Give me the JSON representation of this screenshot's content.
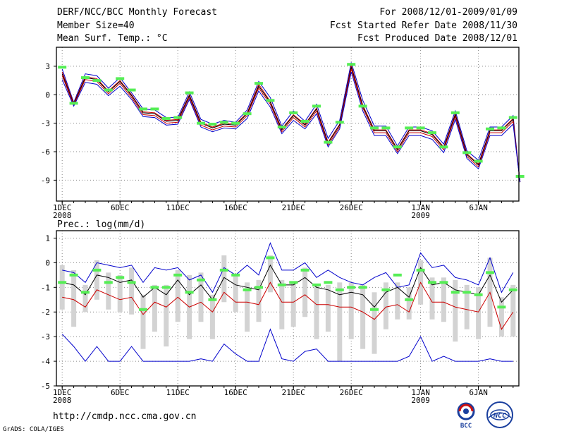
{
  "header": {
    "title": "DERF/NCC/BCC Monthly Forecast",
    "member": "Member Size=40",
    "variable": "Mean Surf. Temp.: °C",
    "period": "For 2008/12/01-2009/01/09",
    "started": "Fcst Started Refer Date 2008/11/30",
    "produced": "Fcst Produced Date 2008/12/01"
  },
  "footer": {
    "url": "http://cmdp.ncc.cma.gov.cn",
    "credit": "GrADS: COLA/IGES",
    "logo_bcc": "BCC",
    "logo_ncc": "NCC"
  },
  "colors": {
    "max": "#0000cc",
    "min": "#0000cc",
    "mean": "#000000",
    "upper": "#cc0000",
    "lower": "#cc0000",
    "bar": "#d3d3d3",
    "marker": "#55ee55",
    "grid": "#888888"
  },
  "chart_data": [
    {
      "type": "line",
      "title": "Mean Surf. Temp.: °C",
      "x": [
        1,
        2,
        3,
        4,
        5,
        6,
        7,
        8,
        9,
        10,
        11,
        12,
        13,
        14,
        15,
        16,
        17,
        18,
        19,
        20,
        21,
        22,
        23,
        24,
        25,
        26,
        27,
        28,
        29,
        30,
        31,
        32,
        33,
        34,
        35,
        36,
        37,
        38,
        39,
        40
      ],
      "xtick_positions": [
        1,
        6,
        11,
        16,
        21,
        26,
        32,
        37
      ],
      "xtick_labels": [
        "1DEC",
        "6DEC",
        "11DEC",
        "16DEC",
        "21DEC",
        "26DEC",
        "1JAN",
        "6JAN"
      ],
      "xtick_sublabels": {
        "1": "2008",
        "32": "2009"
      },
      "xlim": [
        0.5,
        40.5
      ],
      "ylim": [
        -11.2,
        5.0
      ],
      "yticks": [
        3,
        0,
        -3,
        -6,
        -9
      ],
      "ytick_labels": [
        "3",
        "0",
        "-3",
        "-6",
        "-9"
      ],
      "grid": true,
      "series": [
        {
          "name": "max",
          "values": [
            2.7,
            -0.8,
            2.2,
            2.0,
            0.7,
            1.8,
            0.2,
            -1.5,
            -1.6,
            -2.4,
            -2.4,
            0.3,
            -2.6,
            -3.1,
            -2.7,
            -2.9,
            -1.6,
            1.4,
            -0.3,
            -3.3,
            -1.7,
            -2.8,
            -1.0,
            -4.6,
            -2.7,
            3.4,
            -0.6,
            -3.3,
            -3.3,
            -5.4,
            -3.4,
            -3.4,
            -3.8,
            -5.2,
            -1.7,
            -5.9,
            -6.9,
            -3.4,
            -3.4,
            -2.2
          ]
        },
        {
          "name": "upper",
          "values": [
            2.4,
            -0.9,
            1.9,
            1.7,
            0.4,
            1.5,
            0.0,
            -1.8,
            -1.9,
            -2.7,
            -2.6,
            0.0,
            -2.9,
            -3.4,
            -3.0,
            -3.1,
            -1.9,
            1.1,
            -0.7,
            -3.6,
            -2.1,
            -3.1,
            -1.4,
            -5.0,
            -3.1,
            3.1,
            -1.1,
            -3.7,
            -3.7,
            -5.7,
            -3.7,
            -3.7,
            -4.1,
            -5.5,
            -2.0,
            -6.2,
            -7.3,
            -3.7,
            -3.7,
            -2.5
          ]
        },
        {
          "name": "mean",
          "values": [
            2.2,
            -1.0,
            1.8,
            1.6,
            0.3,
            1.4,
            -0.1,
            -1.9,
            -2.0,
            -2.8,
            -2.7,
            -0.1,
            -3.0,
            -3.5,
            -3.1,
            -3.2,
            -2.0,
            0.9,
            -0.8,
            -3.7,
            -2.2,
            -3.2,
            -1.5,
            -5.1,
            -3.2,
            2.9,
            -1.2,
            -3.8,
            -3.8,
            -5.8,
            -3.8,
            -3.8,
            -4.2,
            -5.6,
            -2.1,
            -6.3,
            -7.4,
            -3.8,
            -3.8,
            -2.6
          ]
        },
        {
          "name": "lower",
          "values": [
            2.0,
            -1.1,
            1.6,
            1.4,
            0.1,
            1.2,
            -0.3,
            -2.1,
            -2.2,
            -3.0,
            -2.9,
            -0.3,
            -3.2,
            -3.7,
            -3.3,
            -3.4,
            -2.2,
            0.7,
            -1.0,
            -3.9,
            -2.4,
            -3.4,
            -1.7,
            -5.3,
            -3.4,
            2.7,
            -1.4,
            -4.0,
            -4.0,
            -6.0,
            -4.0,
            -4.0,
            -4.4,
            -5.8,
            -2.3,
            -6.5,
            -7.6,
            -4.0,
            -4.0,
            -2.8
          ]
        },
        {
          "name": "min",
          "values": [
            1.6,
            -1.2,
            1.3,
            1.1,
            -0.1,
            0.9,
            -0.5,
            -2.3,
            -2.4,
            -3.2,
            -3.1,
            -0.5,
            -3.4,
            -3.9,
            -3.5,
            -3.6,
            -2.5,
            0.4,
            -1.3,
            -4.1,
            -2.7,
            -3.6,
            -2.0,
            -5.5,
            -3.6,
            2.4,
            -1.7,
            -4.3,
            -4.3,
            -6.2,
            -4.3,
            -4.3,
            -4.7,
            -6.1,
            -2.6,
            -6.7,
            -7.8,
            -4.3,
            -4.3,
            -3.1
          ]
        }
      ],
      "end_value": -9.2,
      "markers": [
        2.9,
        -0.9,
        1.8,
        1.5,
        0.5,
        1.7,
        0.5,
        -1.5,
        -1.5,
        -2.5,
        -2.4,
        0.2,
        -3.0,
        -3.1,
        -2.9,
        -3.0,
        -2.0,
        1.2,
        -0.6,
        -3.4,
        -1.9,
        -2.8,
        -1.2,
        -5.0,
        -2.9,
        3.2,
        -1.2,
        -3.5,
        -3.5,
        -5.5,
        -3.5,
        -3.5,
        -4.0,
        -5.5,
        -1.9,
        -6.1,
        -7.0,
        -3.6,
        -3.5,
        -2.4
      ],
      "end_marker": -8.6
    },
    {
      "type": "line",
      "title": "Prec.: log(mm/d)",
      "x": [
        1,
        2,
        3,
        4,
        5,
        6,
        7,
        8,
        9,
        10,
        11,
        12,
        13,
        14,
        15,
        16,
        17,
        18,
        19,
        20,
        21,
        22,
        23,
        24,
        25,
        26,
        27,
        28,
        29,
        30,
        31,
        32,
        33,
        34,
        35,
        36,
        37,
        38,
        39,
        40
      ],
      "xtick_positions": [
        1,
        6,
        11,
        16,
        21,
        26,
        32,
        37
      ],
      "xtick_labels": [
        "1DEC",
        "6DEC",
        "11DEC",
        "16DEC",
        "21DEC",
        "26DEC",
        "1JAN",
        "6JAN"
      ],
      "xtick_sublabels": {
        "1": "2008",
        "32": "2009"
      },
      "xlim": [
        0.5,
        40.5
      ],
      "ylim": [
        -5,
        1.3
      ],
      "yticks": [
        1,
        0,
        -1,
        -2,
        -3,
        -4,
        -5
      ],
      "ytick_labels": [
        "1",
        "0",
        "-1",
        "-2",
        "-3",
        "-4",
        "-5"
      ],
      "grid": true,
      "series": [
        {
          "name": "max",
          "values": [
            -0.3,
            -0.4,
            -0.8,
            0.0,
            -0.1,
            -0.2,
            -0.1,
            -0.8,
            -0.2,
            -0.3,
            -0.2,
            -0.7,
            -0.5,
            -1.2,
            -0.2,
            -0.5,
            -0.1,
            -0.5,
            0.8,
            -0.3,
            -0.3,
            0.0,
            -0.6,
            -0.3,
            -0.6,
            -0.8,
            -0.9,
            -0.6,
            -0.4,
            -1.0,
            -0.9,
            0.4,
            -0.2,
            -0.1,
            -0.6,
            -0.7,
            -0.9,
            0.2,
            -1.2,
            -0.4
          ]
        },
        {
          "name": "mean",
          "values": [
            -0.8,
            -0.9,
            -1.3,
            -0.5,
            -0.6,
            -0.8,
            -0.7,
            -1.4,
            -1.0,
            -1.3,
            -0.7,
            -1.3,
            -0.9,
            -1.5,
            -0.6,
            -0.9,
            -1.0,
            -1.1,
            -0.1,
            -0.9,
            -0.9,
            -0.6,
            -1.0,
            -1.1,
            -1.3,
            -1.2,
            -1.3,
            -1.8,
            -1.2,
            -1.0,
            -1.4,
            -0.2,
            -0.9,
            -0.8,
            -1.1,
            -1.2,
            -1.3,
            -0.5,
            -1.6,
            -1.1
          ]
        },
        {
          "name": "lower",
          "values": [
            -1.4,
            -1.5,
            -1.8,
            -1.1,
            -1.3,
            -1.5,
            -1.4,
            -2.1,
            -1.6,
            -1.8,
            -1.4,
            -1.8,
            -1.6,
            -2.0,
            -1.2,
            -1.6,
            -1.6,
            -1.7,
            -0.8,
            -1.6,
            -1.6,
            -1.3,
            -1.7,
            -1.7,
            -1.8,
            -1.8,
            -2.0,
            -2.3,
            -1.8,
            -1.7,
            -2.0,
            -0.8,
            -1.6,
            -1.6,
            -1.8,
            -1.9,
            -2.0,
            -1.2,
            -2.7,
            -2.0
          ]
        },
        {
          "name": "min",
          "values": [
            -2.9,
            -3.4,
            -4.0,
            -3.4,
            -4.0,
            -4.0,
            -3.4,
            -4.0,
            -4.0,
            -4.0,
            -4.0,
            -4.0,
            -3.9,
            -4.0,
            -3.3,
            -3.7,
            -4.0,
            -4.0,
            -2.7,
            -3.9,
            -4.0,
            -3.6,
            -3.5,
            -4.0,
            -4.0,
            -4.0,
            -4.0,
            -4.0,
            -4.0,
            -4.0,
            -3.8,
            -3.0,
            -4.0,
            -3.8,
            -4.0,
            -4.0,
            -4.0,
            -3.9,
            -4.0,
            -4.0
          ]
        }
      ],
      "bars": [
        [
          -1.9,
          -0.1
        ],
        [
          -2.6,
          -0.3
        ],
        [
          -2.0,
          -0.9
        ],
        [
          -1.5,
          0.1
        ],
        [
          -1.9,
          -0.4
        ],
        [
          -2.0,
          -0.5
        ],
        [
          -2.1,
          -0.2
        ],
        [
          -3.5,
          -1.3
        ],
        [
          -2.8,
          -0.9
        ],
        [
          -3.4,
          -0.9
        ],
        [
          -2.4,
          -0.3
        ],
        [
          -3.1,
          -0.5
        ],
        [
          -2.4,
          -0.4
        ],
        [
          -3.1,
          -1.3
        ],
        [
          -1.6,
          0.3
        ],
        [
          -2.0,
          -0.5
        ],
        [
          -2.8,
          -0.8
        ],
        [
          -2.4,
          -0.7
        ],
        [
          -1.2,
          0.3
        ],
        [
          -2.7,
          -0.7
        ],
        [
          -2.6,
          -0.8
        ],
        [
          -2.2,
          -0.2
        ],
        [
          -3.1,
          -0.9
        ],
        [
          -2.8,
          -0.9
        ],
        [
          -4.0,
          -0.8
        ],
        [
          -3.1,
          -0.8
        ],
        [
          -3.5,
          -0.9
        ],
        [
          -3.7,
          -1.2
        ],
        [
          -2.7,
          -0.8
        ],
        [
          -2.3,
          -0.8
        ],
        [
          -2.3,
          -1.0
        ],
        [
          -1.7,
          0.1
        ],
        [
          -2.3,
          -0.6
        ],
        [
          -2.4,
          -0.6
        ],
        [
          -3.2,
          -0.7
        ],
        [
          -2.7,
          -0.9
        ],
        [
          -3.1,
          -1.0
        ],
        [
          -2.6,
          0.2
        ],
        [
          -3.0,
          -1.4
        ],
        [
          -3.0,
          -0.9
        ]
      ],
      "markers": [
        -0.8,
        -0.5,
        -1.2,
        -0.3,
        -0.8,
        -0.6,
        -0.8,
        -1.9,
        -1.0,
        -1.0,
        -0.5,
        -1.2,
        -0.7,
        -1.5,
        -0.3,
        -0.5,
        -1.1,
        -1.0,
        0.2,
        -0.9,
        -0.8,
        -0.3,
        -0.9,
        -0.8,
        -1.1,
        -1.0,
        -1.0,
        -1.9,
        -1.1,
        -0.5,
        -1.5,
        -0.3,
        -0.8,
        -0.8,
        -1.2,
        -1.2,
        -1.3,
        -0.4,
        -1.8,
        -1.1
      ]
    }
  ]
}
